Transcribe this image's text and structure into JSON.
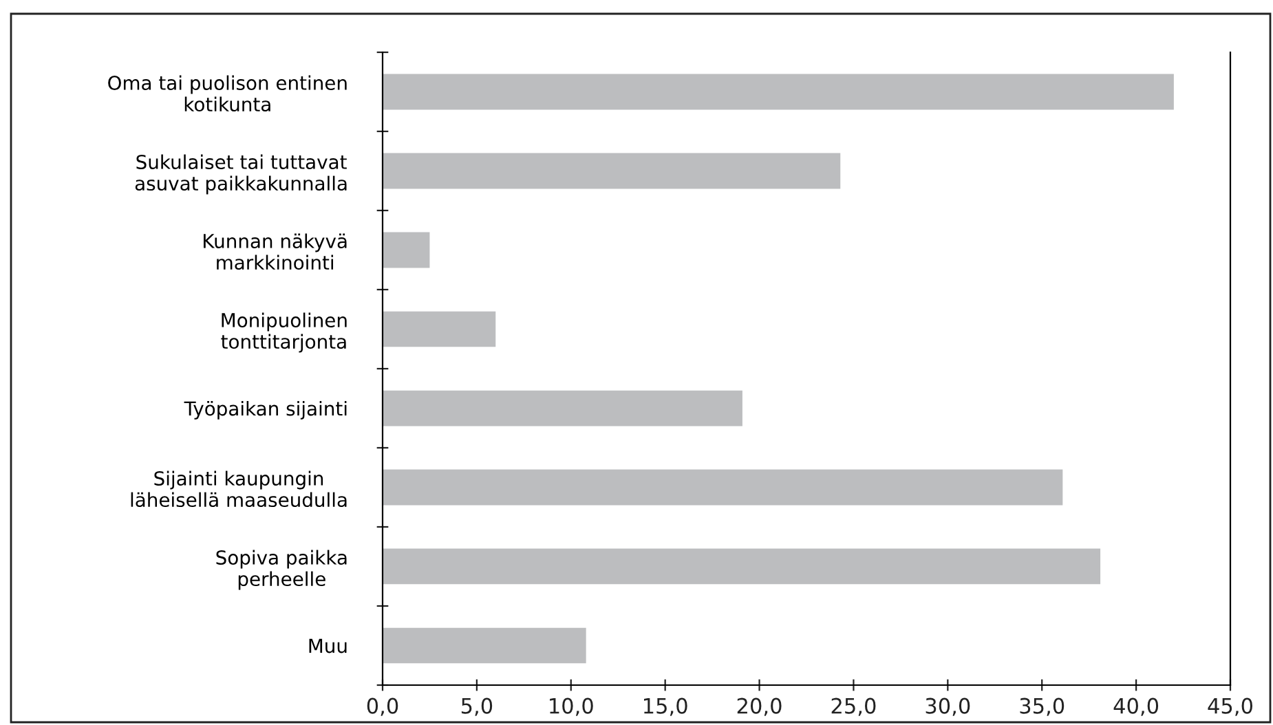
{
  "chart_data": {
    "type": "bar",
    "orientation": "horizontal",
    "categories": [
      "Oma tai puolison entinen\nkotikunta",
      "Sukulaiset tai tuttavat\nasuvat paikkakunnalla",
      "Kunnan näkyvä\nmarkkinointi",
      "Monipuolinen\ntonttitarjonta",
      "Työpaikan sijainti",
      "Sijainti kaupungin\nläheisellä maaseudulla",
      "Sopiva paikka\nperheelle",
      "Muu"
    ],
    "values": [
      42.0,
      24.3,
      2.5,
      6.0,
      19.1,
      36.1,
      38.1,
      10.8
    ],
    "color": "#bcbdbf",
    "xlim": [
      0,
      45
    ],
    "xticks": [
      {
        "value": 0,
        "label": "0,0"
      },
      {
        "value": 5,
        "label": "5,0"
      },
      {
        "value": 10,
        "label": "10,0"
      },
      {
        "value": 15,
        "label": "15,0"
      },
      {
        "value": 20,
        "label": "20,0"
      },
      {
        "value": 25,
        "label": "25,0"
      },
      {
        "value": 30,
        "label": "30,0"
      },
      {
        "value": 35,
        "label": "35,0"
      },
      {
        "value": 40,
        "label": "40,0"
      },
      {
        "value": 45,
        "label": "45,0"
      }
    ],
    "grid": false,
    "legend": false
  }
}
